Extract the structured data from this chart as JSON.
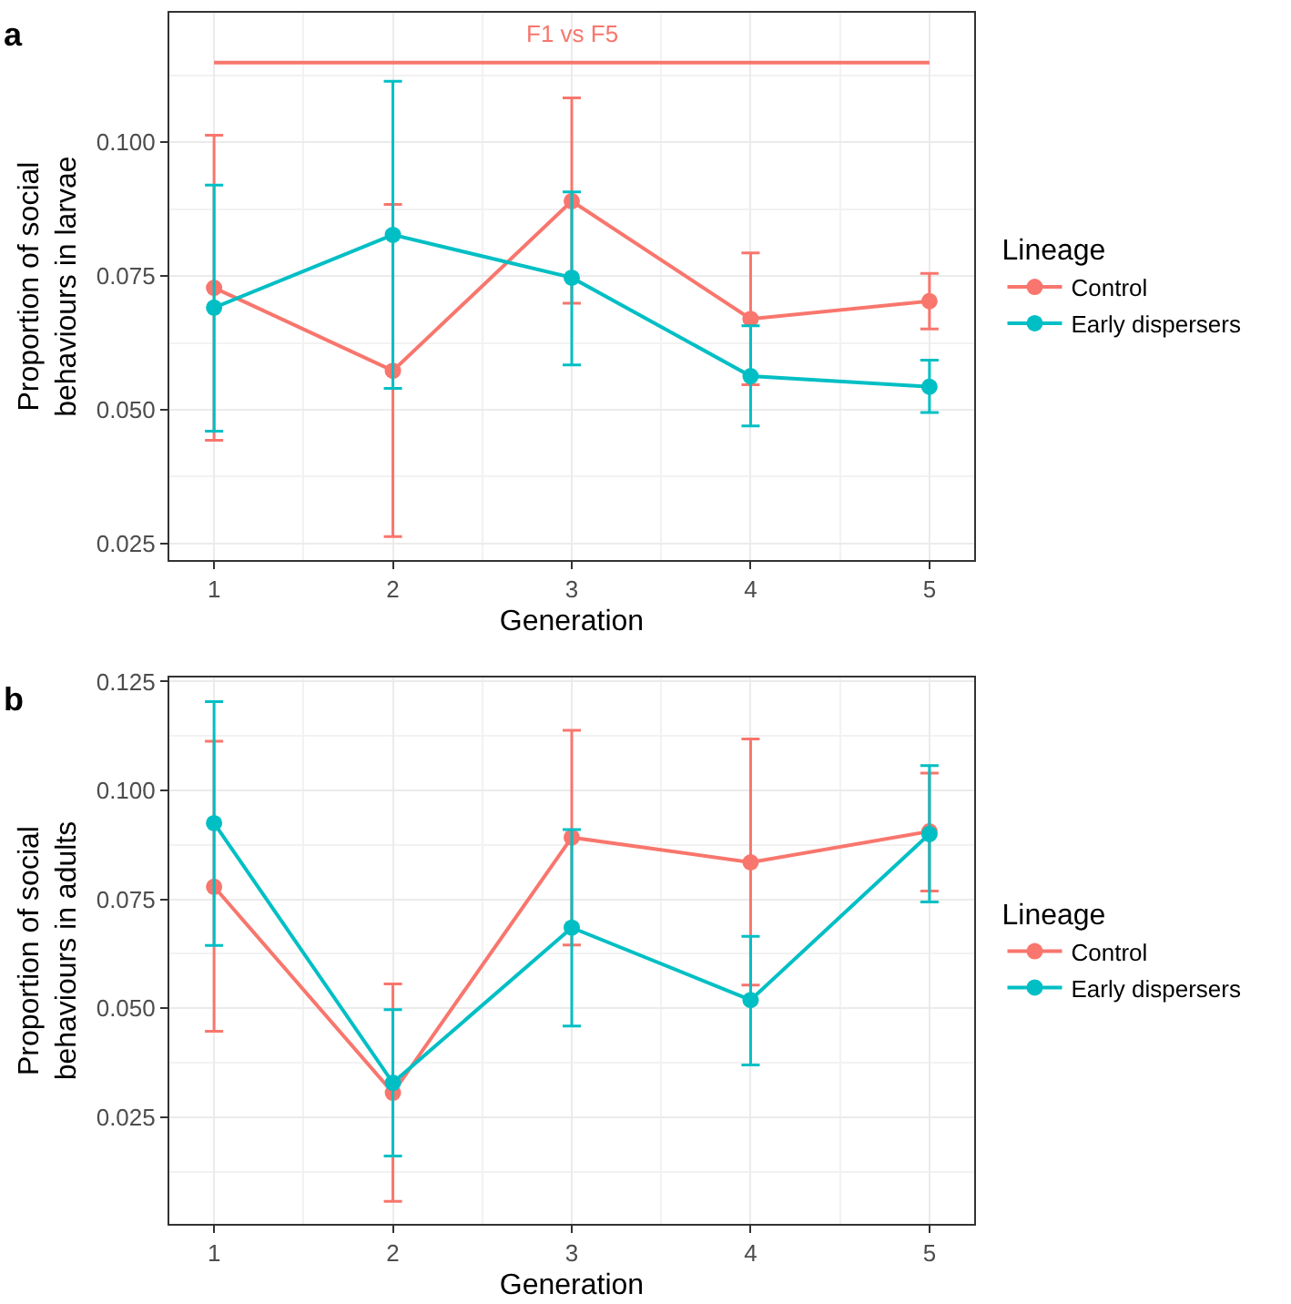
{
  "chart_data": [
    {
      "type": "line",
      "title": "a",
      "xlabel": "Generation",
      "ylabel": "Proportion of social\nbehaviours in larvae",
      "legend_title": "Lineage",
      "x": [
        1,
        2,
        3,
        4,
        5
      ],
      "series": [
        {
          "name": "Control",
          "color": "#f8766d",
          "values": [
            0.0728,
            0.0573,
            0.089,
            0.067,
            0.0703
          ],
          "errors": [
            [
              0.0443,
              0.1013
            ],
            [
              0.0263,
              0.0884
            ],
            [
              0.0699,
              0.1083
            ],
            [
              0.0547,
              0.0793
            ],
            [
              0.0651,
              0.0755
            ]
          ]
        },
        {
          "name": "Early dispersers",
          "color": "#00bfc4",
          "values": [
            0.0691,
            0.0827,
            0.0747,
            0.0563,
            0.0543
          ],
          "errors": [
            [
              0.046,
              0.092
            ],
            [
              0.054,
              0.1114
            ],
            [
              0.0584,
              0.0907
            ],
            [
              0.047,
              0.0657
            ],
            [
              0.0495,
              0.0593
            ]
          ]
        }
      ],
      "ref_lines": [
        {
          "axis": "y",
          "value": 0.1149,
          "label": "F1 vs F5",
          "color": "#f8766d"
        }
      ],
      "xlim": [
        0.75,
        5.25
      ],
      "xticks": [
        1,
        2,
        3,
        4,
        5
      ],
      "ylim": [
        0.0219,
        0.1242
      ],
      "yticks": [
        {
          "value": 0.025,
          "label": "0.025"
        },
        {
          "value": 0.05,
          "label": "0.050"
        },
        {
          "value": 0.075,
          "label": "0.075"
        },
        {
          "value": 0.1,
          "label": "0.100"
        }
      ],
      "grid": true,
      "legend": "right",
      "marker": "circle",
      "line_style": "solid"
    },
    {
      "type": "line",
      "title": "b",
      "xlabel": "Generation",
      "ylabel": "Proportion of social\nbehaviours in adults",
      "legend_title": "Lineage",
      "x": [
        1,
        2,
        3,
        4,
        5
      ],
      "series": [
        {
          "name": "Control",
          "color": "#f8766d",
          "values": [
            0.0779,
            0.0306,
            0.0892,
            0.0835,
            0.0906
          ],
          "errors": [
            [
              0.0447,
              0.1113
            ],
            [
              0.0057,
              0.0556
            ],
            [
              0.0645,
              0.1138
            ],
            [
              0.0553,
              0.1118
            ],
            [
              0.0769,
              0.104
            ]
          ]
        },
        {
          "name": "Early dispersers",
          "color": "#00bfc4",
          "values": [
            0.0925,
            0.0329,
            0.0685,
            0.0519,
            0.09
          ],
          "errors": [
            [
              0.0644,
              0.1204
            ],
            [
              0.0161,
              0.0497
            ],
            [
              0.0459,
              0.091
            ],
            [
              0.037,
              0.0665
            ],
            [
              0.0744,
              0.1057
            ]
          ]
        }
      ],
      "xlim": [
        0.75,
        5.25
      ],
      "xticks": [
        1,
        2,
        3,
        4,
        5
      ],
      "ylim": [
        0.0005,
        0.1259
      ],
      "yticks": [
        {
          "value": 0.025,
          "label": "0.025"
        },
        {
          "value": 0.05,
          "label": "0.050"
        },
        {
          "value": 0.075,
          "label": "0.075"
        },
        {
          "value": 0.1,
          "label": "0.100"
        },
        {
          "value": 0.125,
          "label": "0.125"
        }
      ],
      "grid": true,
      "legend": "right",
      "marker": "circle",
      "line_style": "solid"
    }
  ]
}
